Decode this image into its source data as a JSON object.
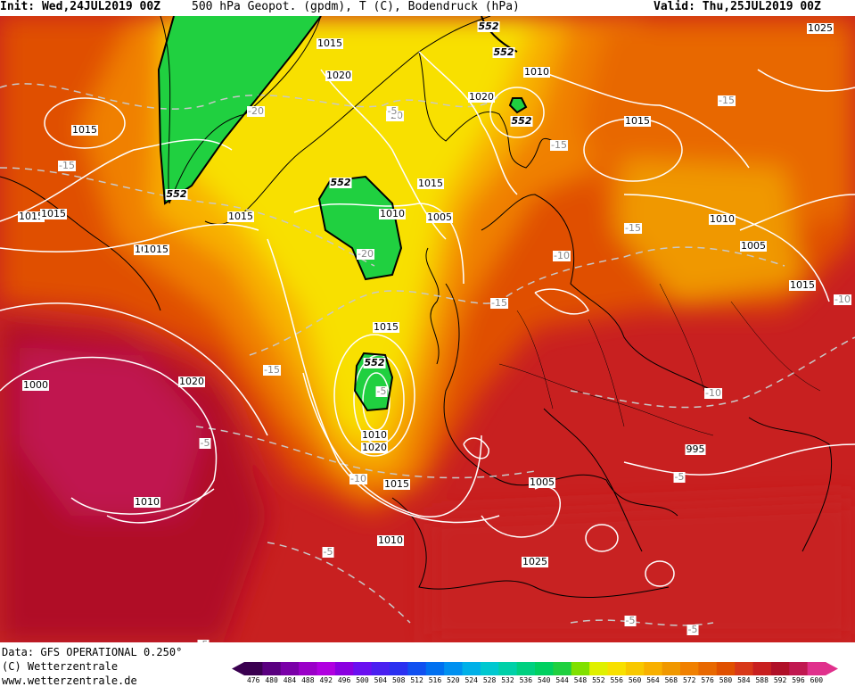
{
  "header": {
    "init": "Init: Wed,24JUL2019 00Z",
    "title": "500 hPa Geopot. (gpdm), T (C), Bodendruck (hPa)",
    "valid": "Valid: Thu,25JUL2019 00Z"
  },
  "footer": {
    "data_line": "Data: GFS OPERATIONAL 0.250°",
    "copyright": "(C) Wetterzentrale",
    "url": "www.wetterzentrale.de"
  },
  "scale": {
    "labels": [
      "476",
      "480",
      "484",
      "488",
      "492",
      "496",
      "500",
      "504",
      "508",
      "512",
      "516",
      "520",
      "524",
      "528",
      "532",
      "536",
      "540",
      "544",
      "548",
      "552",
      "556",
      "560",
      "564",
      "568",
      "572",
      "576",
      "580",
      "584",
      "588",
      "592",
      "596",
      "600"
    ],
    "colors": [
      "#3a0050",
      "#5a0080",
      "#7a00a8",
      "#9a00c8",
      "#b000e0",
      "#8a00e0",
      "#6a10f0",
      "#4a20f0",
      "#2a30f0",
      "#1050f0",
      "#0070f0",
      "#0090f0",
      "#00b0e8",
      "#00c8d0",
      "#00d0a8",
      "#00d080",
      "#00d060",
      "#20d040",
      "#80e000",
      "#e0f000",
      "#f8e000",
      "#f8c800",
      "#f8b000",
      "#f09800",
      "#f08000",
      "#e86800",
      "#e05000",
      "#d83818",
      "#c82020",
      "#b01028",
      "#c01850",
      "#e0308c"
    ]
  },
  "labels": {
    "isobars": [
      "1015",
      "1020",
      "1015",
      "1010",
      "1020",
      "1015",
      "1010",
      "1005",
      "1015",
      "1010",
      "1020",
      "1015",
      "1010",
      "1005",
      "1015",
      "1015",
      "1010",
      "1020",
      "1015",
      "1010",
      "1025",
      "1005",
      "995",
      "1000",
      "1010",
      "1015",
      "1015",
      "1015",
      "1025"
    ],
    "geopot": [
      "552",
      "552",
      "552",
      "552",
      "552",
      "552"
    ],
    "temps": [
      "-20",
      "-20",
      "-15",
      "-15",
      "-15",
      "-20",
      "-15",
      "-10",
      "-10",
      "-15",
      "-15",
      "-10",
      "-5",
      "-5",
      "-5",
      "-5",
      "-5",
      "-10",
      "-5",
      "-5",
      "-5"
    ]
  }
}
